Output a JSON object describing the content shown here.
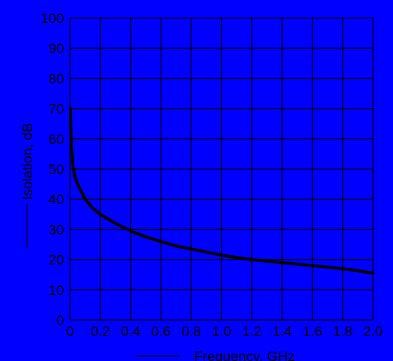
{
  "colors": {
    "background": "#0000ff",
    "grid": "#000000",
    "curve": "#000000",
    "tick_label": "#000000",
    "axis_label": "#000000"
  },
  "chart_data": {
    "type": "line",
    "title": "",
    "xlabel": "Frequency, GHz",
    "ylabel": "Isolation, dB",
    "xlim": [
      0,
      2.0
    ],
    "ylim": [
      0,
      100
    ],
    "xticks": [
      0,
      0.2,
      0.4,
      0.6,
      0.8,
      1.0,
      1.2,
      1.4,
      1.6,
      1.8,
      2.0
    ],
    "xtick_labels": [
      "0",
      "0.2",
      "0.4",
      "0.6",
      "0.8",
      "1.0",
      "1.2",
      "1.4",
      "1.6",
      "1.8",
      "2.0"
    ],
    "yticks": [
      0,
      10,
      20,
      30,
      40,
      50,
      60,
      70,
      80,
      90,
      100
    ],
    "ytick_labels": [
      "0",
      "10",
      "20",
      "30",
      "40",
      "50",
      "60",
      "70",
      "80",
      "90",
      "100"
    ],
    "grid": true,
    "legend": "none",
    "series": [
      {
        "x": [
          0.003,
          0.006,
          0.01,
          0.02,
          0.03,
          0.05,
          0.08,
          0.1,
          0.15,
          0.2,
          0.3,
          0.4,
          0.5,
          0.6,
          0.7,
          0.8,
          0.9,
          1.0,
          1.1,
          1.2,
          1.3,
          1.4,
          1.5,
          1.6,
          1.7,
          1.8,
          1.9,
          2.0
        ],
        "y": [
          70,
          62,
          57,
          51,
          48,
          45,
          42,
          40,
          37,
          35,
          32,
          29.5,
          27.5,
          26,
          24.5,
          23.5,
          22.5,
          21.5,
          20.7,
          20,
          19.5,
          19,
          18.5,
          18,
          17.5,
          17,
          16.3,
          15.5
        ]
      }
    ]
  }
}
